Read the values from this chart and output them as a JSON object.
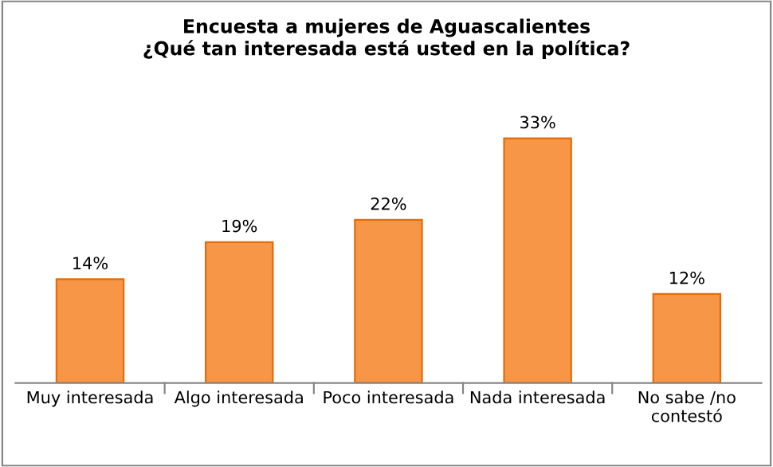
{
  "chart_data": {
    "type": "bar",
    "title": "Encuesta a mujeres de Aguascalientes\n¿Qué tan interesada está usted en la política?",
    "categories": [
      "Muy interesada",
      "Algo interesada",
      "Poco interesada",
      "Nada interesada",
      "No sabe /no\ncontestó"
    ],
    "values": [
      14,
      19,
      22,
      33,
      12
    ],
    "value_labels": [
      "14%",
      "19%",
      "22%",
      "33%",
      "12%"
    ],
    "color": "#f79646",
    "grid": false,
    "legend": false
  }
}
